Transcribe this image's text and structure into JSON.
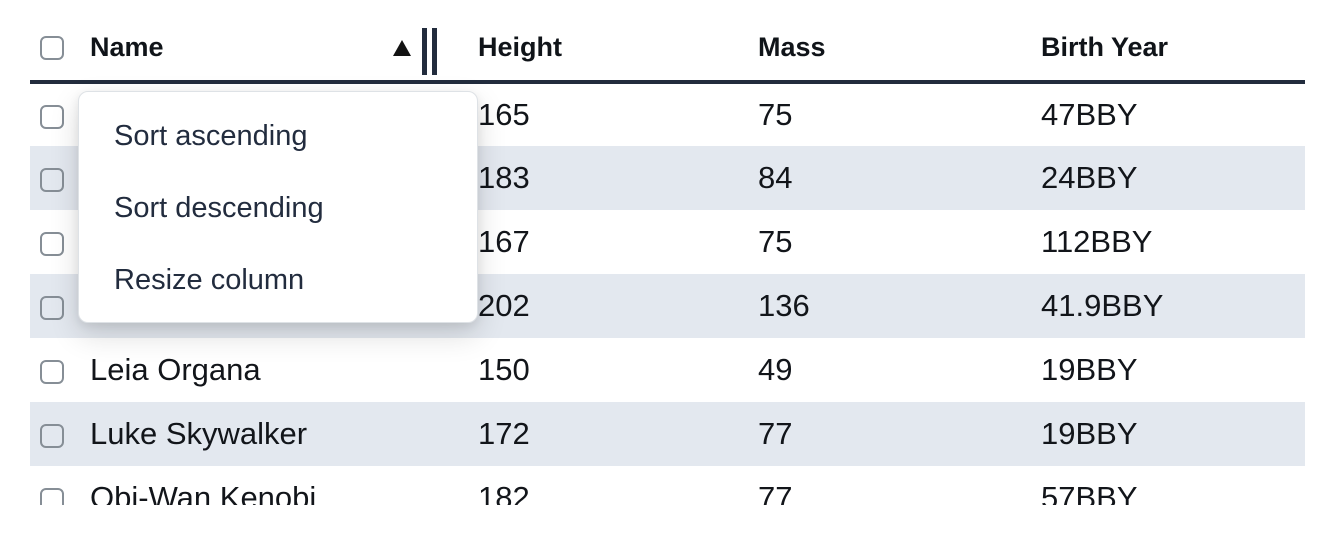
{
  "table": {
    "columns": [
      {
        "label": "Name"
      },
      {
        "label": "Height"
      },
      {
        "label": "Mass"
      },
      {
        "label": "Birth Year"
      }
    ],
    "sort": {
      "column": "Name",
      "direction": "ascending"
    },
    "rows": [
      {
        "name": "",
        "height": "165",
        "mass": "75",
        "birth_year": "47BBY"
      },
      {
        "name": "",
        "height": "183",
        "mass": "84",
        "birth_year": "24BBY"
      },
      {
        "name": "",
        "height": "167",
        "mass": "75",
        "birth_year": "112BBY"
      },
      {
        "name": "",
        "height": "202",
        "mass": "136",
        "birth_year": "41.9BBY"
      },
      {
        "name": "Leia Organa",
        "height": "150",
        "mass": "49",
        "birth_year": "19BBY"
      },
      {
        "name": "Luke Skywalker",
        "height": "172",
        "mass": "77",
        "birth_year": "19BBY"
      },
      {
        "name": "Obi-Wan Kenobi",
        "height": "182",
        "mass": "77",
        "birth_year": "57BBY"
      }
    ]
  },
  "menu": {
    "items": [
      {
        "label": "Sort ascending"
      },
      {
        "label": "Sort descending"
      },
      {
        "label": "Resize column"
      }
    ]
  },
  "icons": {
    "sort_ascending": "filled-up-triangle",
    "resize_handle": "double-vertical-bars",
    "checkbox": "empty-rounded-square"
  },
  "colors": {
    "stripe_row": "#e3e8ef",
    "header_border": "#222c3d",
    "cell_text": "#12151a",
    "menu_text": "#222c3e",
    "checkbox_border": "#868e96",
    "menu_border": "#dee2e6"
  }
}
